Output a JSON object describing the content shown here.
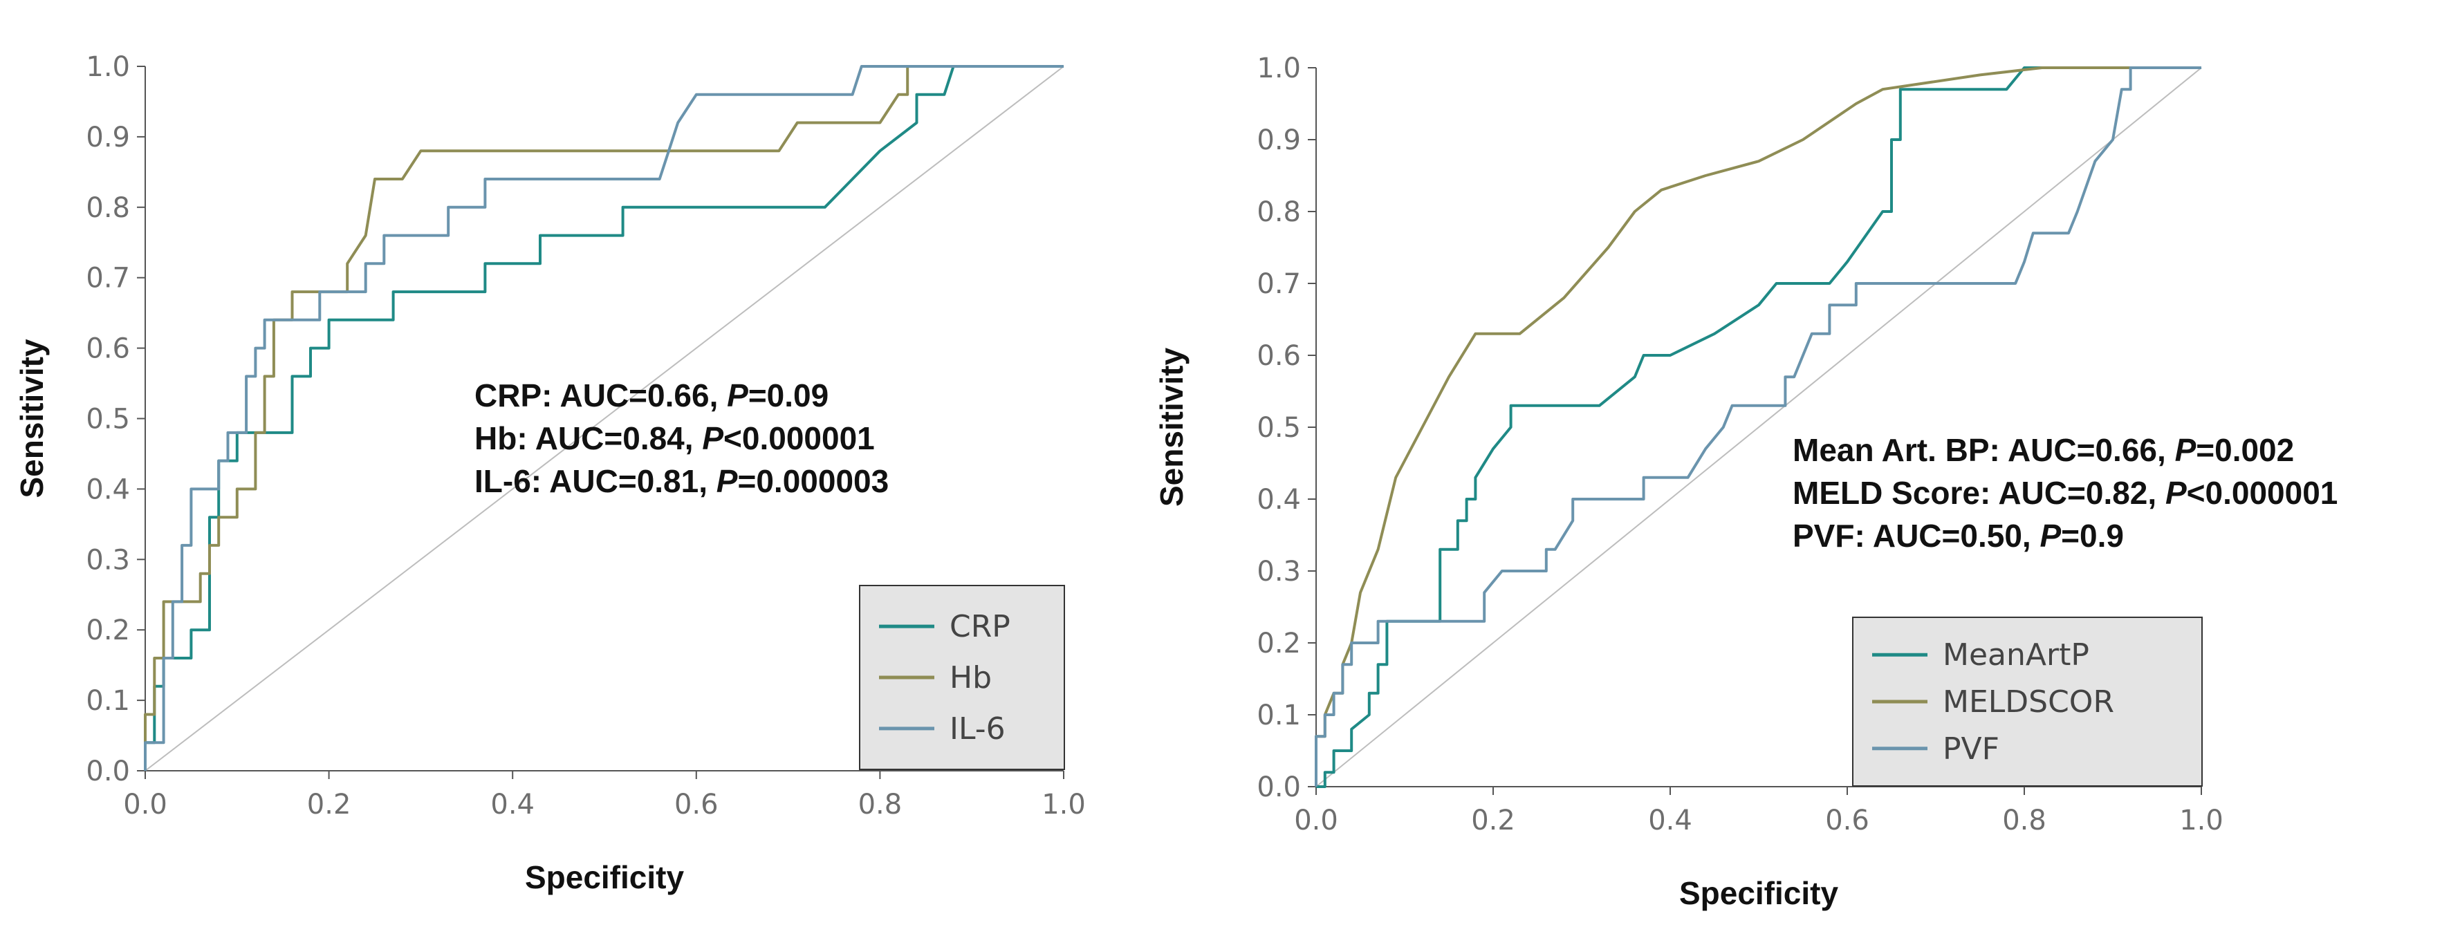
{
  "colors": {
    "teal": "#1f8a86",
    "olive": "#8f8d55",
    "steel": "#6a94ad",
    "diagonal": "#bdbdbd",
    "legend_bg": "#e4e4e4"
  },
  "chart_data": [
    {
      "type": "line",
      "name": "left",
      "xlabel": "Specificity",
      "ylabel": "Sensitivity",
      "xlim": [
        0,
        1
      ],
      "ylim": [
        0,
        1
      ],
      "x_ticks": [
        "0.0",
        "0.2",
        "0.4",
        "0.6",
        "0.8",
        "1.0"
      ],
      "y_ticks": [
        "0.0",
        "0.1",
        "0.2",
        "0.3",
        "0.4",
        "0.5",
        "0.6",
        "0.7",
        "0.8",
        "0.9",
        "1.0"
      ],
      "annotations": [
        {
          "prefix": "CRP:  AUC=0.66, ",
          "p": "P",
          "suffix": "=0.09"
        },
        {
          "prefix": "Hb: AUC=0.84, ",
          "p": "P",
          "suffix": "<0.000001"
        },
        {
          "prefix": "IL-6:  AUC=0.81, ",
          "p": "P",
          "suffix": "=0.000003"
        }
      ],
      "legend": [
        "CRP",
        "Hb",
        "IL-6"
      ],
      "series": [
        {
          "name": "CRP",
          "color": "#1f8a86",
          "points": [
            [
              0,
              0
            ],
            [
              0,
              0.04
            ],
            [
              0.01,
              0.04
            ],
            [
              0.01,
              0.12
            ],
            [
              0.02,
              0.12
            ],
            [
              0.02,
              0.16
            ],
            [
              0.05,
              0.16
            ],
            [
              0.05,
              0.2
            ],
            [
              0.07,
              0.2
            ],
            [
              0.07,
              0.36
            ],
            [
              0.08,
              0.36
            ],
            [
              0.08,
              0.44
            ],
            [
              0.1,
              0.44
            ],
            [
              0.1,
              0.48
            ],
            [
              0.16,
              0.48
            ],
            [
              0.16,
              0.56
            ],
            [
              0.18,
              0.56
            ],
            [
              0.18,
              0.6
            ],
            [
              0.2,
              0.6
            ],
            [
              0.2,
              0.64
            ],
            [
              0.27,
              0.64
            ],
            [
              0.27,
              0.68
            ],
            [
              0.37,
              0.68
            ],
            [
              0.37,
              0.72
            ],
            [
              0.43,
              0.72
            ],
            [
              0.43,
              0.76
            ],
            [
              0.52,
              0.76
            ],
            [
              0.52,
              0.8
            ],
            [
              0.74,
              0.8
            ],
            [
              0.77,
              0.84
            ],
            [
              0.8,
              0.88
            ],
            [
              0.84,
              0.92
            ],
            [
              0.84,
              0.96
            ],
            [
              0.87,
              0.96
            ],
            [
              0.88,
              1.0
            ],
            [
              1.0,
              1.0
            ]
          ]
        },
        {
          "name": "Hb",
          "color": "#8f8d55",
          "points": [
            [
              0,
              0
            ],
            [
              0,
              0.08
            ],
            [
              0.01,
              0.08
            ],
            [
              0.01,
              0.16
            ],
            [
              0.02,
              0.16
            ],
            [
              0.02,
              0.24
            ],
            [
              0.06,
              0.24
            ],
            [
              0.06,
              0.28
            ],
            [
              0.07,
              0.28
            ],
            [
              0.07,
              0.32
            ],
            [
              0.08,
              0.32
            ],
            [
              0.08,
              0.36
            ],
            [
              0.1,
              0.36
            ],
            [
              0.1,
              0.4
            ],
            [
              0.12,
              0.4
            ],
            [
              0.12,
              0.48
            ],
            [
              0.13,
              0.48
            ],
            [
              0.13,
              0.56
            ],
            [
              0.14,
              0.56
            ],
            [
              0.14,
              0.64
            ],
            [
              0.16,
              0.64
            ],
            [
              0.16,
              0.68
            ],
            [
              0.22,
              0.68
            ],
            [
              0.22,
              0.72
            ],
            [
              0.24,
              0.76
            ],
            [
              0.25,
              0.84
            ],
            [
              0.28,
              0.84
            ],
            [
              0.3,
              0.88
            ],
            [
              0.69,
              0.88
            ],
            [
              0.71,
              0.92
            ],
            [
              0.8,
              0.92
            ],
            [
              0.82,
              0.96
            ],
            [
              0.83,
              0.96
            ],
            [
              0.83,
              1.0
            ],
            [
              1.0,
              1.0
            ]
          ]
        },
        {
          "name": "IL-6",
          "color": "#6a94ad",
          "points": [
            [
              0,
              0
            ],
            [
              0,
              0.04
            ],
            [
              0.02,
              0.04
            ],
            [
              0.02,
              0.16
            ],
            [
              0.03,
              0.16
            ],
            [
              0.03,
              0.24
            ],
            [
              0.04,
              0.24
            ],
            [
              0.04,
              0.32
            ],
            [
              0.05,
              0.32
            ],
            [
              0.05,
              0.4
            ],
            [
              0.08,
              0.4
            ],
            [
              0.08,
              0.44
            ],
            [
              0.09,
              0.44
            ],
            [
              0.09,
              0.48
            ],
            [
              0.11,
              0.48
            ],
            [
              0.11,
              0.56
            ],
            [
              0.12,
              0.56
            ],
            [
              0.12,
              0.6
            ],
            [
              0.13,
              0.6
            ],
            [
              0.13,
              0.64
            ],
            [
              0.19,
              0.64
            ],
            [
              0.19,
              0.68
            ],
            [
              0.24,
              0.68
            ],
            [
              0.24,
              0.72
            ],
            [
              0.26,
              0.72
            ],
            [
              0.26,
              0.76
            ],
            [
              0.33,
              0.76
            ],
            [
              0.33,
              0.8
            ],
            [
              0.37,
              0.8
            ],
            [
              0.37,
              0.84
            ],
            [
              0.56,
              0.84
            ],
            [
              0.57,
              0.88
            ],
            [
              0.58,
              0.92
            ],
            [
              0.6,
              0.96
            ],
            [
              0.77,
              0.96
            ],
            [
              0.78,
              1.0
            ],
            [
              1.0,
              1.0
            ]
          ]
        }
      ]
    },
    {
      "type": "line",
      "name": "right",
      "xlabel": "Specificity",
      "ylabel": "Sensitivity",
      "xlim": [
        0,
        1
      ],
      "ylim": [
        0,
        1
      ],
      "x_ticks": [
        "0.0",
        "0.2",
        "0.4",
        "0.6",
        "0.8",
        "1.0"
      ],
      "y_ticks": [
        "0.0",
        "0.1",
        "0.2",
        "0.3",
        "0.4",
        "0.5",
        "0.6",
        "0.7",
        "0.8",
        "0.9",
        "1.0"
      ],
      "annotations": [
        {
          "prefix": "Mean Art. BP: AUC=0.66, ",
          "p": "P",
          "suffix": "=0.002"
        },
        {
          "prefix": "MELD Score: AUC=0.82, ",
          "p": "P",
          "suffix": "<0.000001"
        },
        {
          "prefix": "PVF:  AUC=0.50, ",
          "p": "P",
          "suffix": "=0.9"
        }
      ],
      "legend": [
        "MeanArtP",
        "MELDSCOR",
        "PVF"
      ],
      "series": [
        {
          "name": "MeanArtP",
          "color": "#1f8a86",
          "points": [
            [
              0,
              0
            ],
            [
              0.01,
              0
            ],
            [
              0.01,
              0.02
            ],
            [
              0.02,
              0.02
            ],
            [
              0.02,
              0.05
            ],
            [
              0.04,
              0.05
            ],
            [
              0.04,
              0.08
            ],
            [
              0.06,
              0.1
            ],
            [
              0.06,
              0.13
            ],
            [
              0.07,
              0.13
            ],
            [
              0.07,
              0.17
            ],
            [
              0.08,
              0.17
            ],
            [
              0.08,
              0.23
            ],
            [
              0.14,
              0.23
            ],
            [
              0.14,
              0.33
            ],
            [
              0.16,
              0.33
            ],
            [
              0.16,
              0.37
            ],
            [
              0.17,
              0.37
            ],
            [
              0.17,
              0.4
            ],
            [
              0.18,
              0.4
            ],
            [
              0.18,
              0.43
            ],
            [
              0.2,
              0.47
            ],
            [
              0.22,
              0.5
            ],
            [
              0.22,
              0.53
            ],
            [
              0.32,
              0.53
            ],
            [
              0.36,
              0.57
            ],
            [
              0.37,
              0.6
            ],
            [
              0.4,
              0.6
            ],
            [
              0.45,
              0.63
            ],
            [
              0.5,
              0.67
            ],
            [
              0.52,
              0.7
            ],
            [
              0.58,
              0.7
            ],
            [
              0.6,
              0.73
            ],
            [
              0.64,
              0.8
            ],
            [
              0.65,
              0.8
            ],
            [
              0.65,
              0.9
            ],
            [
              0.66,
              0.9
            ],
            [
              0.66,
              0.97
            ],
            [
              0.78,
              0.97
            ],
            [
              0.8,
              1.0
            ],
            [
              1.0,
              1.0
            ]
          ]
        },
        {
          "name": "MELDSCOR",
          "color": "#8f8d55",
          "points": [
            [
              0,
              0
            ],
            [
              0,
              0.07
            ],
            [
              0.01,
              0.07
            ],
            [
              0.01,
              0.1
            ],
            [
              0.02,
              0.13
            ],
            [
              0.03,
              0.13
            ],
            [
              0.03,
              0.17
            ],
            [
              0.04,
              0.2
            ],
            [
              0.05,
              0.27
            ],
            [
              0.07,
              0.33
            ],
            [
              0.09,
              0.43
            ],
            [
              0.12,
              0.5
            ],
            [
              0.15,
              0.57
            ],
            [
              0.18,
              0.63
            ],
            [
              0.23,
              0.63
            ],
            [
              0.28,
              0.68
            ],
            [
              0.33,
              0.75
            ],
            [
              0.36,
              0.8
            ],
            [
              0.39,
              0.83
            ],
            [
              0.44,
              0.85
            ],
            [
              0.5,
              0.87
            ],
            [
              0.55,
              0.9
            ],
            [
              0.61,
              0.95
            ],
            [
              0.64,
              0.97
            ],
            [
              0.75,
              0.99
            ],
            [
              0.82,
              1.0
            ],
            [
              1.0,
              1.0
            ]
          ]
        },
        {
          "name": "PVF",
          "color": "#6a94ad",
          "points": [
            [
              0,
              0
            ],
            [
              0,
              0.07
            ],
            [
              0.01,
              0.07
            ],
            [
              0.01,
              0.1
            ],
            [
              0.02,
              0.1
            ],
            [
              0.02,
              0.13
            ],
            [
              0.03,
              0.13
            ],
            [
              0.03,
              0.17
            ],
            [
              0.04,
              0.17
            ],
            [
              0.04,
              0.2
            ],
            [
              0.07,
              0.2
            ],
            [
              0.07,
              0.23
            ],
            [
              0.19,
              0.23
            ],
            [
              0.19,
              0.27
            ],
            [
              0.21,
              0.3
            ],
            [
              0.26,
              0.3
            ],
            [
              0.26,
              0.33
            ],
            [
              0.27,
              0.33
            ],
            [
              0.29,
              0.37
            ],
            [
              0.29,
              0.4
            ],
            [
              0.37,
              0.4
            ],
            [
              0.37,
              0.43
            ],
            [
              0.42,
              0.43
            ],
            [
              0.44,
              0.47
            ],
            [
              0.46,
              0.5
            ],
            [
              0.47,
              0.53
            ],
            [
              0.53,
              0.53
            ],
            [
              0.53,
              0.57
            ],
            [
              0.54,
              0.57
            ],
            [
              0.55,
              0.6
            ],
            [
              0.56,
              0.63
            ],
            [
              0.58,
              0.63
            ],
            [
              0.58,
              0.67
            ],
            [
              0.61,
              0.67
            ],
            [
              0.61,
              0.7
            ],
            [
              0.79,
              0.7
            ],
            [
              0.8,
              0.73
            ],
            [
              0.81,
              0.77
            ],
            [
              0.85,
              0.77
            ],
            [
              0.86,
              0.8
            ],
            [
              0.88,
              0.87
            ],
            [
              0.9,
              0.9
            ],
            [
              0.91,
              0.97
            ],
            [
              0.92,
              0.97
            ],
            [
              0.92,
              1.0
            ],
            [
              1.0,
              1.0
            ]
          ]
        }
      ]
    }
  ]
}
